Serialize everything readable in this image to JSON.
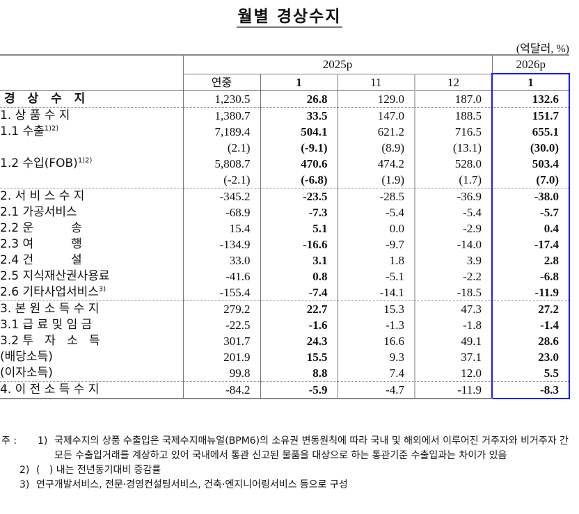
{
  "title": "월별 경상수지",
  "unit": "(억달러, %)",
  "header": {
    "year_2025": "2025p",
    "year_2026": "2026p",
    "columns": [
      "연중",
      "1",
      "11",
      "12",
      "1"
    ]
  },
  "rows": [
    {
      "label": "경 상 수 지",
      "indent": 0,
      "sup": "",
      "values": [
        "1,230.5",
        "26.8",
        "129.0",
        "187.0",
        "132.6"
      ]
    },
    {
      "label": "1. 상 품 수 지",
      "indent": 1,
      "sup": "",
      "values": [
        "1,380.7",
        "33.5",
        "147.0",
        "188.5",
        "151.7"
      ]
    },
    {
      "label": "1.1 수출",
      "indent": 2,
      "sup": "1)2)",
      "values": [
        "7,189.4",
        "504.1",
        "621.2",
        "716.5",
        "655.1"
      ]
    },
    {
      "label": "",
      "indent": 2,
      "sup": "",
      "values": [
        "(2.1)",
        "(-9.1)",
        "(8.9)",
        "(13.1)",
        "(30.0)"
      ]
    },
    {
      "label": "1.2 수입(FOB)",
      "indent": 2,
      "sup": "1)2)",
      "values": [
        "5,808.7",
        "470.6",
        "474.2",
        "528.0",
        "503.4"
      ]
    },
    {
      "label": "",
      "indent": 2,
      "sup": "",
      "values": [
        "(-2.1)",
        "(-6.8)",
        "(1.9)",
        "(1.7)",
        "(7.0)"
      ]
    },
    {
      "label": "2. 서 비 스 수 지",
      "indent": 1,
      "sup": "",
      "values": [
        "-345.2",
        "-23.5",
        "-28.5",
        "-36.9",
        "-38.0"
      ]
    },
    {
      "label": "2.1 가공서비스",
      "indent": 2,
      "sup": "",
      "values": [
        "-68.9",
        "-7.3",
        "-5.4",
        "-5.4",
        "-5.7"
      ]
    },
    {
      "label": "2.2 운          송",
      "indent": 2,
      "sup": "",
      "values": [
        "15.4",
        "5.1",
        "0.0",
        "-2.9",
        "0.4"
      ]
    },
    {
      "label": "2.3 여          행",
      "indent": 2,
      "sup": "",
      "values": [
        "-134.9",
        "-16.6",
        "-9.7",
        "-14.0",
        "-17.4"
      ]
    },
    {
      "label": "2.4 건          설",
      "indent": 2,
      "sup": "",
      "values": [
        "33.0",
        "3.1",
        "1.8",
        "3.9",
        "2.8"
      ]
    },
    {
      "label": "2.5 지식재산권사용료",
      "indent": 2,
      "sup": "",
      "values": [
        "-41.6",
        "0.8",
        "-5.1",
        "-2.2",
        "-6.8"
      ]
    },
    {
      "label": "2.6 기타사업서비스",
      "indent": 2,
      "sup": "3)",
      "values": [
        "-155.4",
        "-7.4",
        "-14.1",
        "-18.5",
        "-11.9"
      ]
    },
    {
      "label": "3. 본 원 소 득 수 지",
      "indent": 1,
      "sup": "",
      "values": [
        "279.2",
        "22.7",
        "15.3",
        "47.3",
        "27.2"
      ]
    },
    {
      "label": "3.1 급 료 및 임 금",
      "indent": 2,
      "sup": "",
      "values": [
        "-22.5",
        "-1.6",
        "-1.3",
        "-1.8",
        "-1.4"
      ]
    },
    {
      "label": "3.2 투   자   소   득",
      "indent": 2,
      "sup": "",
      "values": [
        "301.7",
        "24.3",
        "16.6",
        "49.1",
        "28.6"
      ]
    },
    {
      "label": "(배당소득)",
      "indent": 3,
      "sup": "",
      "values": [
        "201.9",
        "15.5",
        "9.3",
        "37.1",
        "23.0"
      ]
    },
    {
      "label": "(이자소득)",
      "indent": 3,
      "sup": "",
      "values": [
        "99.8",
        "8.8",
        "7.4",
        "12.0",
        "5.5"
      ]
    },
    {
      "label": "4. 이 전 소 득 수 지",
      "indent": 1,
      "sup": "",
      "values": [
        "-84.2",
        "-5.9",
        "-4.7",
        "-11.9",
        "-8.3"
      ]
    }
  ],
  "notes": {
    "prefix": "주 :",
    "items": [
      {
        "num": "1)",
        "text": "국제수지의 상품 수출입은 국제수지매뉴얼(BPM6)의 소유권 변동원칙에 따라 국내 및 해외에서 이루어진 거주자와 비거주자 간 모든 수출입거래를 계상하고 있어 국내에서 통관 신고된 물품을 대상으로 하는 통관기준 수출입과는 차이가 있음"
      },
      {
        "num": "2)",
        "text": "(   ) 내는 전년동기대비 증감률"
      },
      {
        "num": "3)",
        "text": "연구개발서비스, 전문·경영컨설팅서비스, 건축·엔지니어링서비스 등으로 구성"
      }
    ]
  },
  "colors": {
    "highlight_box": "#1a1aff",
    "grid_dark": "#777777",
    "grid_light": "#bbbbbb"
  }
}
